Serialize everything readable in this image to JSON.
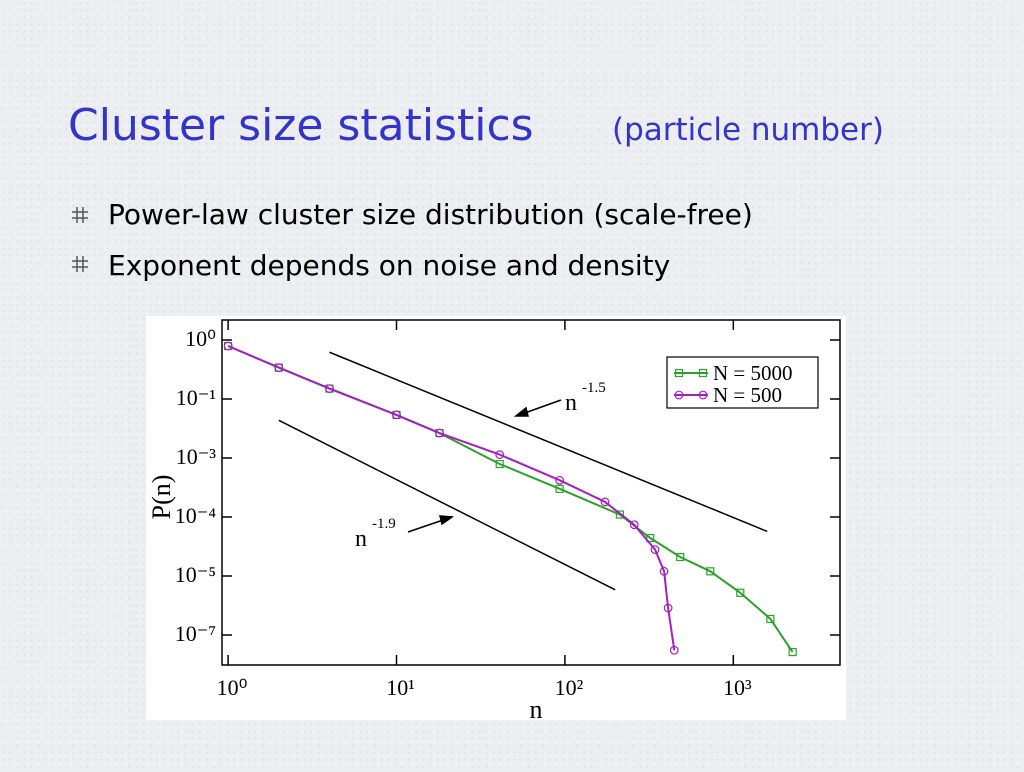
{
  "slide": {
    "title": "Cluster size statistics",
    "title_note": "(particle number)",
    "bullets": [
      "Power-law cluster size distribution (scale-free)",
      "Exponent depends on noise and density"
    ]
  },
  "chart_data": {
    "type": "line",
    "x_label": "n",
    "y_label": "P(n)",
    "log_x": true,
    "log_y": true,
    "legend": "upper right",
    "xlim": [
      0.92,
      4300
    ],
    "xticks": [
      {
        "value": 1,
        "label": "10⁰"
      },
      {
        "value": 10,
        "label": "10¹"
      },
      {
        "value": 100,
        "label": "10²"
      },
      {
        "value": 1000,
        "label": "10³"
      }
    ],
    "ylim": [
      1e-08,
      2.2
    ],
    "yticks": [
      {
        "value": 1,
        "label": "10⁰"
      },
      {
        "value": 0.1,
        "label": "10⁻¹"
      },
      {
        "value": 0.001,
        "label": "10⁻³"
      },
      {
        "value": 0.0001,
        "label": "10⁻⁴"
      },
      {
        "value": 1e-05,
        "label": "10⁻⁵"
      },
      {
        "value": 1e-07,
        "label": "10⁻⁷"
      }
    ],
    "series": [
      {
        "name": "N = 5000",
        "color": "#2ca02c",
        "marker": "square",
        "x": [
          1,
          2.0,
          4.0,
          10,
          18,
          41,
          93,
          212,
          321,
          484,
          730,
          1100,
          1660,
          2250
        ],
        "values": [
          0.79,
          0.34,
          0.15,
          0.029,
          0.007,
          0.00079,
          0.0003,
          0.00011,
          4.4e-05,
          2.1e-05,
          1.2e-05,
          2.7e-06,
          3.5e-07,
          2.7e-08
        ]
      },
      {
        "name": "N = 500",
        "color": "#a020c0",
        "marker": "circle",
        "x": [
          1,
          2.0,
          4.0,
          10,
          18,
          41,
          93,
          173,
          258,
          343,
          388,
          410,
          446
        ],
        "values": [
          0.79,
          0.34,
          0.15,
          0.029,
          0.007,
          0.0013,
          0.00042,
          0.00018,
          7.4e-05,
          2.8e-05,
          1.2e-05,
          8.2e-07,
          3.1e-08
        ]
      }
    ],
    "reference_lines": [
      {
        "x": [
          4.0,
          1590
        ],
        "values": [
          0.62,
          5.7e-05
        ],
        "text": "n",
        "exponent": "-1.5"
      },
      {
        "x": [
          2.0,
          199
        ],
        "values": [
          0.019,
          3.4e-06
        ],
        "text": "n",
        "exponent": "-1.9"
      }
    ]
  }
}
